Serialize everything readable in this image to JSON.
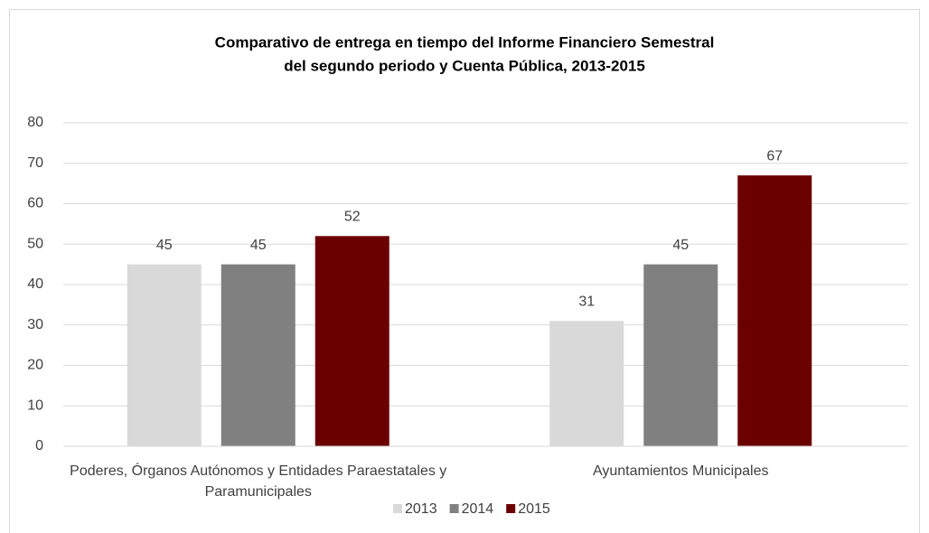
{
  "chart_data": {
    "type": "bar",
    "title": [
      "Comparativo de entrega en tiempo del Informe Financiero Semestral",
      "del segundo periodo y Cuenta Pública, 2013-2015"
    ],
    "categories": [
      "Poderes, Órganos Autónomos y Entidades Paraestatales y Paramunicipales",
      "Ayuntamientos Municipales"
    ],
    "series": [
      {
        "name": "2013",
        "color": "#d9d9d9",
        "values": [
          45,
          31
        ]
      },
      {
        "name": "2014",
        "color": "#808080",
        "values": [
          45,
          45
        ]
      },
      {
        "name": "2015",
        "color": "#6b0000",
        "values": [
          52,
          67
        ]
      }
    ],
    "ylim": [
      0,
      80
    ],
    "yticks": [
      0,
      10,
      20,
      30,
      40,
      50,
      60,
      70,
      80
    ],
    "grid": true,
    "legend": "bottom"
  }
}
